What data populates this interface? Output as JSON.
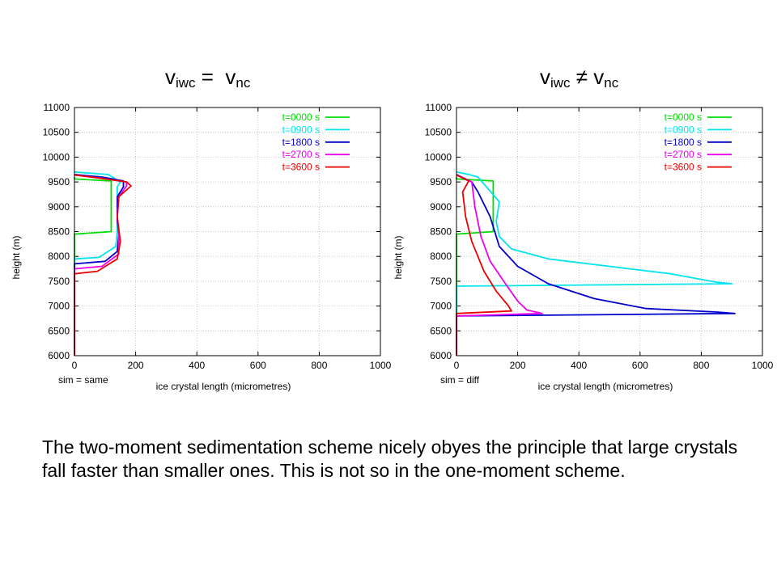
{
  "headings": {
    "left": {
      "v1": "v",
      "s1": "iwc",
      "op": " =  ",
      "v2": "v",
      "s2": "nc"
    },
    "right": {
      "v1": "v",
      "s1": "iwc",
      "op": " ≠ ",
      "v2": "v",
      "s2": "nc"
    }
  },
  "caption": "The two-moment sedimentation scheme nicely obyes the principle that large crystals fall faster than smaller ones.  This is not so in the one-moment scheme.",
  "chart_data": [
    {
      "type": "line",
      "xlabel": "ice crystal length (micrometres)",
      "ylabel": "height (m)",
      "sim_label": "sim = same",
      "xlim": [
        0,
        1000
      ],
      "ylim": [
        6000,
        11000
      ],
      "x_ticks": [
        "0",
        "200",
        "400",
        "600",
        "800",
        "1000"
      ],
      "y_ticks": [
        "6000",
        "6500",
        "7000",
        "7500",
        "8000",
        "8500",
        "9000",
        "9500",
        "10000",
        "10500",
        "11000"
      ],
      "grid": true,
      "legend_position": "top-right",
      "series": [
        {
          "name": "t=0000 s",
          "color": "#00dd00",
          "points": [
            [
              0,
              6000
            ],
            [
              0,
              8450
            ],
            [
              120,
              8500
            ],
            [
              120,
              9520
            ],
            [
              0,
              9560
            ],
            [
              0,
              9600
            ]
          ]
        },
        {
          "name": "t=0900 s",
          "color": "#00e5ee",
          "points": [
            [
              0,
              6000
            ],
            [
              0,
              7950
            ],
            [
              80,
              7980
            ],
            [
              135,
              8200
            ],
            [
              140,
              8500
            ],
            [
              140,
              9400
            ],
            [
              150,
              9500
            ],
            [
              110,
              9650
            ],
            [
              0,
              9700
            ]
          ]
        },
        {
          "name": "t=1800 s",
          "color": "#0000cc",
          "points": [
            [
              0,
              6000
            ],
            [
              0,
              7850
            ],
            [
              100,
              7900
            ],
            [
              140,
              8100
            ],
            [
              145,
              8450
            ],
            [
              140,
              8700
            ],
            [
              140,
              9200
            ],
            [
              160,
              9400
            ],
            [
              160,
              9520
            ],
            [
              90,
              9600
            ],
            [
              0,
              9650
            ]
          ]
        },
        {
          "name": "t=2700 s",
          "color": "#ee00ee",
          "points": [
            [
              0,
              6000
            ],
            [
              0,
              7750
            ],
            [
              90,
              7800
            ],
            [
              145,
              8050
            ],
            [
              145,
              8450
            ],
            [
              140,
              8800
            ],
            [
              145,
              9200
            ],
            [
              170,
              9420
            ],
            [
              170,
              9500
            ],
            [
              80,
              9580
            ],
            [
              0,
              9640
            ]
          ]
        },
        {
          "name": "t=3600 s",
          "color": "#ee0000",
          "points": [
            [
              0,
              6000
            ],
            [
              0,
              7650
            ],
            [
              75,
              7700
            ],
            [
              140,
              7950
            ],
            [
              150,
              8300
            ],
            [
              140,
              8800
            ],
            [
              145,
              9200
            ],
            [
              185,
              9420
            ],
            [
              170,
              9500
            ],
            [
              80,
              9580
            ],
            [
              0,
              9640
            ]
          ]
        }
      ]
    },
    {
      "type": "line",
      "xlabel": "ice crystal length (micrometres)",
      "ylabel": "height (m)",
      "sim_label": "sim = diff",
      "xlim": [
        0,
        1000
      ],
      "ylim": [
        6000,
        11000
      ],
      "x_ticks": [
        "0",
        "200",
        "400",
        "600",
        "800",
        "1000"
      ],
      "y_ticks": [
        "6000",
        "6500",
        "7000",
        "7500",
        "8000",
        "8500",
        "9000",
        "9500",
        "10000",
        "10500",
        "11000"
      ],
      "grid": true,
      "legend_position": "top-right",
      "series": [
        {
          "name": "t=0000 s",
          "color": "#00dd00",
          "points": [
            [
              0,
              6000
            ],
            [
              0,
              8450
            ],
            [
              120,
              8500
            ],
            [
              120,
              9520
            ],
            [
              0,
              9560
            ],
            [
              0,
              9600
            ]
          ]
        },
        {
          "name": "t=0900 s",
          "color": "#00e5ee",
          "points": [
            [
              0,
              6000
            ],
            [
              0,
              7400
            ],
            [
              900,
              7450
            ],
            [
              850,
              7480
            ],
            [
              700,
              7650
            ],
            [
              500,
              7800
            ],
            [
              300,
              7950
            ],
            [
              180,
              8150
            ],
            [
              140,
              8400
            ],
            [
              130,
              8700
            ],
            [
              140,
              9100
            ],
            [
              70,
              9600
            ],
            [
              40,
              9650
            ],
            [
              0,
              9700
            ]
          ]
        },
        {
          "name": "t=1800 s",
          "color": "#0000cc",
          "points": [
            [
              0,
              6000
            ],
            [
              0,
              6800
            ],
            [
              910,
              6850
            ],
            [
              850,
              6880
            ],
            [
              620,
              6950
            ],
            [
              450,
              7150
            ],
            [
              300,
              7450
            ],
            [
              200,
              7800
            ],
            [
              140,
              8200
            ],
            [
              110,
              8800
            ],
            [
              70,
              9300
            ],
            [
              50,
              9500
            ],
            [
              0,
              9650
            ]
          ]
        },
        {
          "name": "t=2700 s",
          "color": "#ee00ee",
          "points": [
            [
              0,
              6000
            ],
            [
              0,
              6800
            ],
            [
              280,
              6850
            ],
            [
              230,
              6920
            ],
            [
              200,
              7100
            ],
            [
              160,
              7450
            ],
            [
              110,
              7900
            ],
            [
              80,
              8400
            ],
            [
              60,
              9000
            ],
            [
              50,
              9500
            ],
            [
              0,
              9640
            ]
          ]
        },
        {
          "name": "t=3600 s",
          "color": "#ee0000",
          "points": [
            [
              0,
              6000
            ],
            [
              0,
              6850
            ],
            [
              180,
              6900
            ],
            [
              170,
              7000
            ],
            [
              130,
              7300
            ],
            [
              90,
              7700
            ],
            [
              50,
              8300
            ],
            [
              30,
              8800
            ],
            [
              20,
              9300
            ],
            [
              40,
              9520
            ],
            [
              0,
              9640
            ]
          ]
        }
      ]
    }
  ]
}
